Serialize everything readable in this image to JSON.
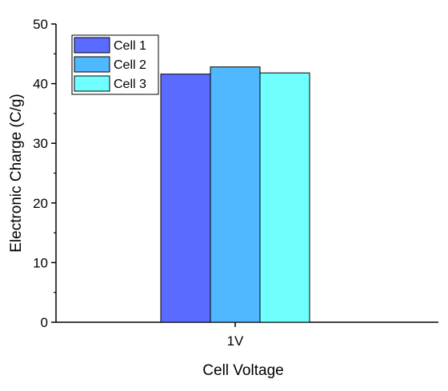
{
  "chart_data": {
    "type": "bar",
    "categories": [
      "1V"
    ],
    "series": [
      {
        "name": "Cell 1",
        "values": [
          41.6
        ],
        "color": "#5B6BFF"
      },
      {
        "name": "Cell 2",
        "values": [
          42.8
        ],
        "color": "#4FB8FF"
      },
      {
        "name": "Cell 3",
        "values": [
          41.8
        ],
        "color": "#6FFFFF"
      }
    ],
    "xlabel": "Cell Voltage",
    "ylabel": "Electronic Charge (C/g)",
    "ylim": [
      0,
      50
    ],
    "yticks": [
      0,
      10,
      20,
      30,
      40,
      50
    ],
    "grid": false,
    "legend_position": "top-left"
  }
}
